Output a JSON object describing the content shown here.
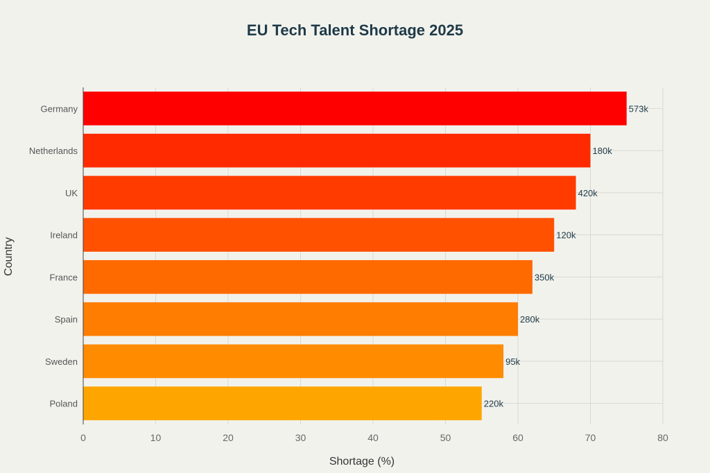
{
  "chart_data": {
    "type": "bar",
    "orientation": "horizontal",
    "title": "EU Tech Talent Shortage 2025",
    "xlabel": "Shortage (%)",
    "ylabel": "Country",
    "xlim": [
      0,
      80
    ],
    "xticks": [
      0,
      10,
      20,
      30,
      40,
      50,
      60,
      70,
      80
    ],
    "grid": true,
    "categories": [
      "Germany",
      "Netherlands",
      "UK",
      "Ireland",
      "France",
      "Spain",
      "Sweden",
      "Poland"
    ],
    "values": [
      75,
      70,
      68,
      65,
      62,
      60,
      58,
      55
    ],
    "data_labels": [
      "573k",
      "180k",
      "420k",
      "120k",
      "350k",
      "280k",
      "95k",
      "220k"
    ],
    "colors": [
      "#ff0000",
      "#ff2a00",
      "#ff3b00",
      "#ff5100",
      "#ff6a00",
      "#ff7d00",
      "#ff8c00",
      "#ffa500"
    ]
  }
}
